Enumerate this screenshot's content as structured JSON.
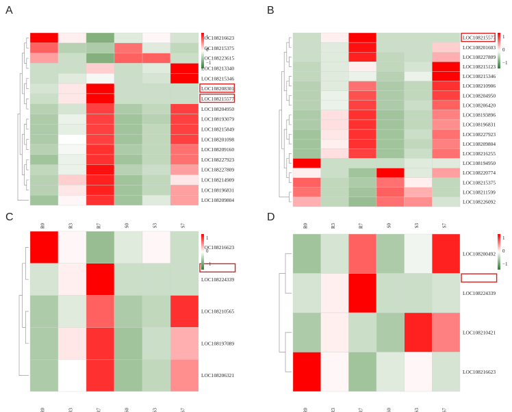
{
  "colors": {
    "high": "#ff0000",
    "mid": "#ffffff",
    "low": "#2e7d32",
    "highlight": "#d62020",
    "dendro": "#999999"
  },
  "chart_data": [
    {
      "panel": "A",
      "type": "heatmap",
      "columns": [
        "R0",
        "R3",
        "R7",
        "S0",
        "S3",
        "S7"
      ],
      "rows": [
        "LOC108216623",
        "LOC108215375",
        "LOC108223615",
        "LOC108213340",
        "LOC108215346",
        "LOC108208301",
        "LOC108215577",
        "LOC108204950",
        "LOC108193079",
        "LOC108215849",
        "LOC108201098",
        "LOC108209160",
        "LOC108227923",
        "LOC108227809",
        "LOC108214909",
        "LOC108196831",
        "LOC108209804"
      ],
      "highlighted": [
        "LOC108208301",
        "LOC108215577"
      ],
      "values": [
        [
          1.6,
          0.1,
          -1.2,
          -0.3,
          0.05,
          -0.4
        ],
        [
          1.0,
          -0.7,
          -0.8,
          0.9,
          -0.3,
          -0.6
        ],
        [
          0.6,
          -0.5,
          -1.2,
          1.0,
          1.0,
          -0.5
        ],
        [
          -0.5,
          -0.5,
          0.3,
          -0.5,
          -0.3,
          1.6
        ],
        [
          -0.5,
          -0.3,
          -0.1,
          -0.5,
          -0.4,
          1.6
        ],
        [
          -0.4,
          0.15,
          1.6,
          -0.5,
          -0.5,
          -0.5
        ],
        [
          -0.5,
          0.15,
          1.6,
          -0.5,
          -0.5,
          -0.5
        ],
        [
          -0.7,
          -0.4,
          1.2,
          -0.8,
          -0.6,
          1.2
        ],
        [
          -0.8,
          -0.2,
          1.2,
          -0.9,
          -0.7,
          1.2
        ],
        [
          -0.8,
          -0.25,
          1.2,
          -0.9,
          -0.6,
          1.2
        ],
        [
          -0.8,
          0.0,
          1.2,
          -0.9,
          -0.6,
          1.2
        ],
        [
          -0.7,
          -0.1,
          1.3,
          -0.8,
          -0.6,
          0.9
        ],
        [
          -0.9,
          -0.2,
          1.3,
          -0.9,
          -0.6,
          0.9
        ],
        [
          -0.6,
          -0.2,
          1.5,
          -0.7,
          -0.5,
          0.6
        ],
        [
          -0.7,
          0.3,
          1.4,
          -0.9,
          -0.6,
          0.15
        ],
        [
          -0.7,
          0.15,
          1.4,
          -0.9,
          -0.6,
          0.6
        ],
        [
          -0.9,
          0.05,
          1.3,
          -0.9,
          -0.3,
          0.6
        ]
      ],
      "legend_ticks": [
        "1",
        "0",
        "−1"
      ]
    },
    {
      "panel": "B",
      "type": "heatmap",
      "columns": [
        "R0",
        "R3",
        "R7",
        "S0",
        "S3",
        "S7"
      ],
      "rows": [
        "LOC108215577",
        "LOC108201603",
        "LOC108227809",
        "LOC108215123",
        "LOC108215346",
        "LOC108210906",
        "LOC108204950",
        "LOC108206420",
        "LOC108193896",
        "LOC108196831",
        "LOC108227923",
        "LOC108209804",
        "LOC108216255",
        "LOC108194950",
        "LOC108220774",
        "LOC108215375",
        "LOC108211599",
        "LOC108226092"
      ],
      "highlighted": [
        "LOC108215577"
      ],
      "values": [
        [
          -0.5,
          0.1,
          1.6,
          -0.5,
          -0.5,
          -0.5
        ],
        [
          -0.5,
          -0.3,
          1.5,
          -0.5,
          -0.5,
          0.3
        ],
        [
          -0.5,
          -0.3,
          1.4,
          -0.6,
          -0.5,
          0.5
        ],
        [
          -0.6,
          -0.3,
          0.1,
          -0.6,
          -0.4,
          1.6
        ],
        [
          -0.6,
          -0.3,
          -0.2,
          -0.7,
          -0.2,
          1.6
        ],
        [
          -0.7,
          -0.3,
          0.9,
          -0.8,
          -0.6,
          1.3
        ],
        [
          -0.7,
          -0.2,
          1.1,
          -0.8,
          -0.6,
          1.2
        ],
        [
          -0.7,
          -0.2,
          1.2,
          -0.8,
          -0.5,
          1.0
        ],
        [
          -0.8,
          0.2,
          1.3,
          -0.9,
          -0.6,
          0.8
        ],
        [
          -0.8,
          0.2,
          1.3,
          -0.9,
          -0.6,
          0.7
        ],
        [
          -0.9,
          0.15,
          1.3,
          -0.9,
          -0.5,
          0.9
        ],
        [
          -0.9,
          0.1,
          1.3,
          -0.9,
          -0.6,
          0.8
        ],
        [
          -0.9,
          0.2,
          1.2,
          -0.9,
          -0.5,
          0.9
        ],
        [
          1.6,
          -0.5,
          -0.5,
          -0.5,
          -0.3,
          -0.3
        ],
        [
          0.1,
          -0.5,
          -0.9,
          1.6,
          -0.3,
          0.6
        ],
        [
          1.0,
          -0.6,
          -0.8,
          0.9,
          0.1,
          -0.6
        ],
        [
          0.9,
          -0.6,
          -0.9,
          1.0,
          0.5,
          -0.6
        ],
        [
          0.5,
          -0.6,
          -1.0,
          0.9,
          0.7,
          -0.4
        ]
      ],
      "legend_ticks": [
        "1",
        "0",
        "−1"
      ]
    },
    {
      "panel": "C",
      "type": "heatmap",
      "columns": [
        "R0",
        "R3",
        "R7",
        "S0",
        "S3",
        "S7"
      ],
      "rows": [
        "LOC108216623",
        "LOC108224339",
        "LOC108210565",
        "LOC108197089",
        "LOC108206321"
      ],
      "highlighted": [
        "LOC108224339"
      ],
      "values": [
        [
          1.6,
          0.05,
          -1.0,
          -0.3,
          0.05,
          -0.5
        ],
        [
          -0.4,
          0.1,
          1.6,
          -0.5,
          -0.5,
          -0.5
        ],
        [
          -0.8,
          -0.3,
          1.0,
          -0.8,
          -0.6,
          1.3
        ],
        [
          -0.8,
          0.15,
          1.3,
          -0.9,
          -0.5,
          0.5
        ],
        [
          -0.8,
          0.0,
          1.3,
          -0.9,
          -0.6,
          0.7
        ]
      ],
      "legend_ticks": [
        "1",
        "0",
        "−1"
      ]
    },
    {
      "panel": "D",
      "type": "heatmap",
      "columns": [
        "R0",
        "R3",
        "R7",
        "S0",
        "S3",
        "S7"
      ],
      "rows": [
        "LOC108200492",
        "LOC108224339",
        "LOC108210421",
        "LOC108216623"
      ],
      "highlighted": [
        "LOC108224339"
      ],
      "values": [
        [
          -0.9,
          -0.4,
          1.0,
          -0.8,
          -0.15,
          1.4
        ],
        [
          -0.4,
          0.1,
          1.6,
          -0.5,
          -0.5,
          -0.4
        ],
        [
          -0.8,
          0.1,
          -0.5,
          -0.8,
          1.4,
          0.8
        ],
        [
          1.6,
          0.05,
          -0.9,
          -0.3,
          0.05,
          -0.4
        ]
      ],
      "legend_ticks": [
        "1",
        "0",
        "−1"
      ]
    }
  ]
}
